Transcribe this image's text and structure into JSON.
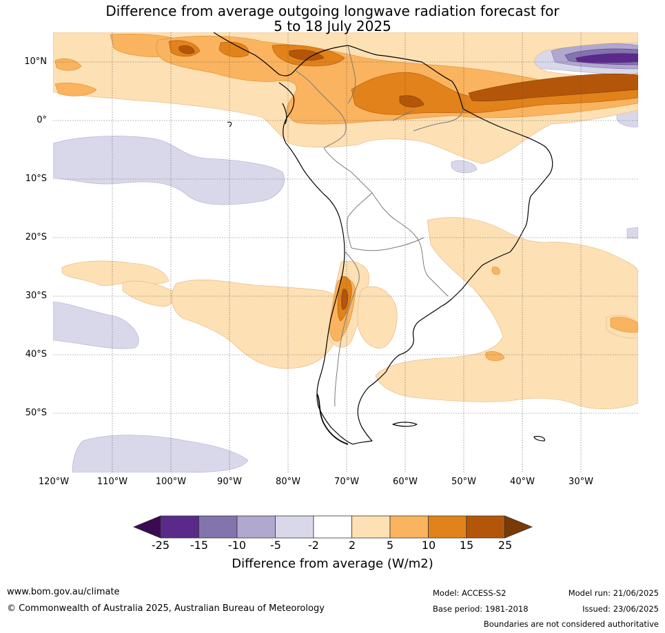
{
  "title": {
    "line1": "Difference from average outgoing longwave radiation forecast for",
    "line2": "5 to 18 July 2025"
  },
  "lat_labels": [
    "10°N",
    "0°",
    "10°S",
    "20°S",
    "30°S",
    "40°S",
    "50°S"
  ],
  "lon_labels": [
    "120°W",
    "110°W",
    "100°W",
    "90°W",
    "80°W",
    "70°W",
    "60°W",
    "50°W",
    "40°W",
    "30°W"
  ],
  "colorbar": {
    "ticks": [
      "-25",
      "-15",
      "-10",
      "-5",
      "-2",
      "2",
      "5",
      "10",
      "15",
      "25"
    ],
    "colors": [
      "#3a0a52",
      "#5a2a8a",
      "#8474ad",
      "#b0a8cf",
      "#d8d8ea",
      "#ffffff",
      "#fde0b4",
      "#fab35e",
      "#e1821a",
      "#b4560a",
      "#7a3a06"
    ],
    "label": "Difference from average (W/m2)"
  },
  "footer": {
    "website": "www.bom.gov.au/climate",
    "copyright": "© Commonwealth of Australia 2025, Australian Bureau of Meteorology",
    "model": "Model: ACCESS-S2",
    "base_period": "Base period: 1981-2018",
    "model_run": "Model run: 21/06/2025",
    "issued": "Issued: 23/06/2025",
    "disclaimer": "Boundaries are not considered authoritative"
  }
}
